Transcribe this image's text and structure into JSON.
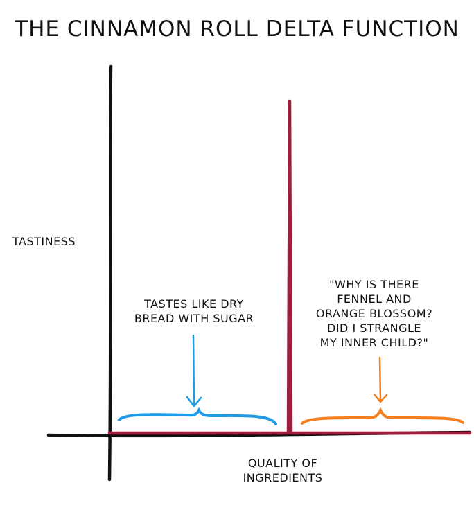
{
  "chart_data": {
    "type": "line",
    "title": "THE CINNAMON ROLL DELTA FUNCTION",
    "xlabel": "QUALITY OF\nINGREDIENTS",
    "ylabel": "TASTINESS",
    "series": [
      {
        "x": [
          0,
          0.49,
          0.5,
          0.51,
          1
        ],
        "y": [
          0,
          0,
          1,
          0,
          0
        ],
        "color": "#9e1f3d"
      }
    ],
    "annotations": [
      {
        "text": "TASTES LIKE DRY\nBREAD WITH SUGAR",
        "region": "left",
        "color": "#1e9be6"
      },
      {
        "text": "\"WHY IS THERE\nFENNEL AND\nORANGE BLOSSOM?\nDID I STRANGLE\nMY INNER CHILD?\"",
        "region": "right",
        "color": "#f57f1c"
      }
    ],
    "grid": false,
    "axis_color": "#111111"
  }
}
